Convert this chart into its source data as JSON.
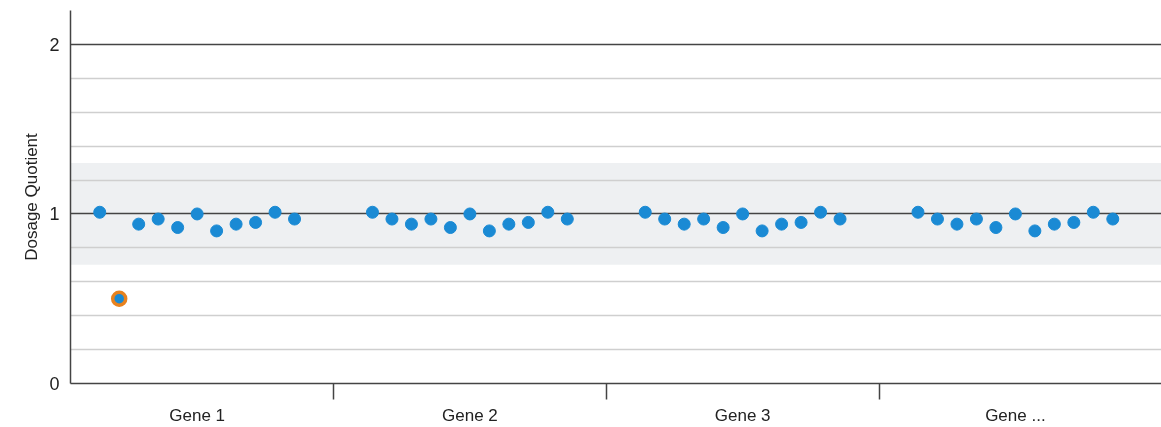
{
  "chart_data": {
    "type": "scatter",
    "ylabel": "Dosage Quotient",
    "marker": "circle",
    "grid": "y",
    "categories": [
      null,
      null,
      null,
      null,
      null,
      null,
      "Gene 1",
      null,
      null,
      null,
      null,
      null,
      null,
      null,
      null,
      null,
      null,
      null,
      null,
      null,
      "Gene 2",
      null,
      null,
      null,
      null,
      null,
      null,
      null,
      null,
      null,
      null,
      null,
      null,
      null,
      "Gene 3",
      null,
      null,
      null,
      null,
      null,
      null,
      null,
      null,
      null,
      null,
      null,
      null,
      null,
      "Gene ...",
      null,
      null,
      null,
      null,
      null,
      null,
      null
    ],
    "ylim": [
      0,
      2.2
    ],
    "yticks": [
      0,
      {
        "value": 0.2,
        "label": null
      },
      {
        "value": 0.4,
        "label": null
      },
      {
        "value": 0.6,
        "label": null
      },
      {
        "value": 0.8,
        "label": null
      },
      1,
      {
        "value": 1.2,
        "label": null
      },
      {
        "value": 1.4,
        "label": null
      },
      {
        "value": 1.6,
        "label": null
      },
      {
        "value": 1.8,
        "label": null
      },
      2
    ],
    "bands": [
      {
        "axis": "y",
        "from": 0.7,
        "to": 1.3,
        "color": "#eef0f2"
      }
    ],
    "series": [
      {
        "color": "#1a8ad4",
        "values": [
          null,
          1.01,
          null,
          0.94,
          0.97,
          0.92,
          1.0,
          0.9,
          0.94,
          0.95,
          1.01,
          0.97,
          null,
          null,
          null,
          1.01,
          0.97,
          0.94,
          0.97,
          0.92,
          1.0,
          0.9,
          0.94,
          0.95,
          1.01,
          0.97,
          null,
          null,
          null,
          1.01,
          0.97,
          0.94,
          0.97,
          0.92,
          1.0,
          0.9,
          0.94,
          0.95,
          1.01,
          0.97,
          null,
          null,
          null,
          1.01,
          0.97,
          0.94,
          0.97,
          0.92,
          1.0,
          0.9,
          0.94,
          0.95,
          1.01,
          0.97,
          null,
          null
        ]
      },
      {
        "color": "#e8821e",
        "values": [
          null,
          null,
          0.5,
          null,
          null,
          null,
          null,
          null,
          null,
          null,
          null,
          null,
          null,
          null,
          null,
          null,
          null,
          null,
          null,
          null,
          null,
          null,
          null,
          null,
          null,
          null,
          null,
          null,
          null,
          null,
          null,
          null,
          null,
          null,
          null,
          null,
          null,
          null,
          null,
          null,
          null,
          null,
          null,
          null,
          null,
          null,
          null,
          null,
          null,
          null,
          null,
          null,
          null,
          null,
          null,
          null
        ]
      }
    ]
  }
}
